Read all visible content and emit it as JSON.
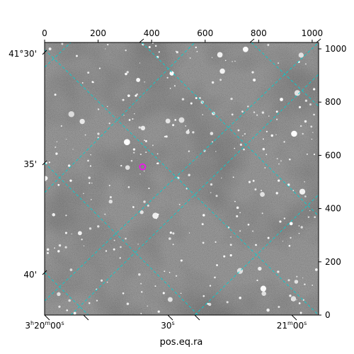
{
  "chart_data": {
    "type": "scatter",
    "title": "",
    "xlabel": "pos.eq.ra",
    "ylabel": "",
    "image_background": "astronomical grayscale sky image (star field)",
    "pixel_axes": {
      "top_ticks": [
        "0",
        "200",
        "400",
        "600",
        "800",
        "1000"
      ],
      "top_tick_values": [
        0,
        200,
        400,
        600,
        800,
        1000
      ],
      "right_ticks": [
        "0",
        "200",
        "400",
        "600",
        "800",
        "1000"
      ],
      "right_tick_values": [
        0,
        200,
        400,
        600,
        800,
        1000
      ],
      "xlim": [
        0,
        1024
      ],
      "ylim": [
        0,
        1024
      ]
    },
    "world_axes": {
      "ra_ticks": [
        {
          "label": "3h20m00s",
          "h": "3",
          "m": "20",
          "s": "00"
        },
        {
          "label": "30s",
          "h": "",
          "m": "",
          "s": "30"
        },
        {
          "label": "21m00s",
          "h": "",
          "m": "21",
          "s": "00"
        }
      ],
      "dec_ticks": [
        {
          "label": "41°30'",
          "deg": "41°",
          "min": "30'"
        },
        {
          "label": "35'",
          "deg": "",
          "min": "35'"
        },
        {
          "label": "40'",
          "deg": "",
          "min": "40'"
        }
      ]
    },
    "grid": {
      "on": true,
      "color": "#00d0d0",
      "style": "dashed"
    },
    "marker": {
      "label": "",
      "x": 366,
      "y": 557,
      "color": "#ff00ff",
      "shape": "circle"
    }
  }
}
